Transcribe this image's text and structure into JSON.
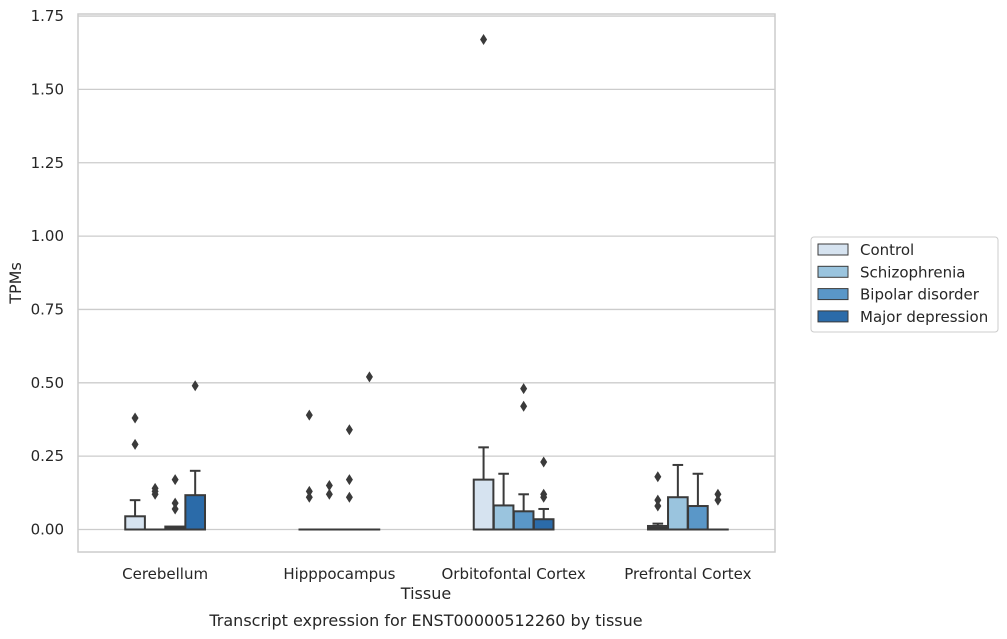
{
  "chart_data": {
    "type": "box",
    "title": "",
    "xlabel": "Tissue",
    "ylabel": "TPMs",
    "caption": "Transcript expression for ENST00000512260 by tissue",
    "categories": [
      "Cerebellum",
      "Hipppocampus",
      "Orbitofontal Cortex",
      "Prefrontal Cortex"
    ],
    "ylim": [
      -0.08,
      1.76
    ],
    "yticks": [
      0.0,
      0.25,
      0.5,
      0.75,
      1.0,
      1.25,
      1.5,
      1.75
    ],
    "ytick_labels": [
      "0.00",
      "0.25",
      "0.50",
      "0.75",
      "1.00",
      "1.25",
      "1.50",
      "1.75"
    ],
    "grid": "horizontal",
    "legend_position": "right",
    "series": [
      {
        "name": "Control",
        "color": "#d6e3f0",
        "boxes": [
          {
            "q1": 0.0,
            "median": 0.0,
            "q3": 0.045,
            "whisker_low": 0.0,
            "whisker_high": 0.1,
            "outliers": [
              0.38,
              0.29
            ]
          },
          {
            "q1": 0.0,
            "median": 0.0,
            "q3": 0.0,
            "whisker_low": 0.0,
            "whisker_high": 0.0,
            "outliers": [
              0.39,
              0.13,
              0.11
            ]
          },
          {
            "q1": 0.0,
            "median": 0.0,
            "q3": 0.17,
            "whisker_low": 0.0,
            "whisker_high": 0.28,
            "outliers": [
              1.67
            ]
          },
          {
            "q1": 0.0,
            "median": 0.005,
            "q3": 0.012,
            "whisker_low": 0.0,
            "whisker_high": 0.02,
            "outliers": [
              0.18,
              0.1,
              0.08
            ]
          }
        ]
      },
      {
        "name": "Schizophrenia",
        "color": "#9ac4de",
        "boxes": [
          {
            "q1": 0.0,
            "median": 0.0,
            "q3": 0.0,
            "whisker_low": 0.0,
            "whisker_high": 0.0,
            "outliers": [
              0.14,
              0.13,
              0.12
            ]
          },
          {
            "q1": 0.0,
            "median": 0.0,
            "q3": 0.0,
            "whisker_low": 0.0,
            "whisker_high": 0.0,
            "outliers": [
              0.15,
              0.12
            ]
          },
          {
            "q1": 0.0,
            "median": 0.0,
            "q3": 0.082,
            "whisker_low": 0.0,
            "whisker_high": 0.19,
            "outliers": []
          },
          {
            "q1": 0.0,
            "median": 0.0,
            "q3": 0.11,
            "whisker_low": 0.0,
            "whisker_high": 0.22,
            "outliers": []
          }
        ]
      },
      {
        "name": "Bipolar disorder",
        "color": "#5a97c8",
        "boxes": [
          {
            "q1": 0.0,
            "median": 0.005,
            "q3": 0.01,
            "whisker_low": 0.0,
            "whisker_high": 0.01,
            "outliers": [
              0.17,
              0.09,
              0.07
            ]
          },
          {
            "q1": 0.0,
            "median": 0.0,
            "q3": 0.0,
            "whisker_low": 0.0,
            "whisker_high": 0.0,
            "outliers": [
              0.34,
              0.17,
              0.11
            ]
          },
          {
            "q1": 0.0,
            "median": 0.0,
            "q3": 0.062,
            "whisker_low": 0.0,
            "whisker_high": 0.12,
            "outliers": [
              0.48,
              0.42
            ]
          },
          {
            "q1": 0.0,
            "median": 0.0,
            "q3": 0.08,
            "whisker_low": 0.0,
            "whisker_high": 0.19,
            "outliers": []
          }
        ]
      },
      {
        "name": "Major depression",
        "color": "#2b6ba9",
        "boxes": [
          {
            "q1": 0.0,
            "median": 0.0,
            "q3": 0.117,
            "whisker_low": 0.0,
            "whisker_high": 0.2,
            "outliers": [
              0.49
            ]
          },
          {
            "q1": 0.0,
            "median": 0.0,
            "q3": 0.0,
            "whisker_low": 0.0,
            "whisker_high": 0.0,
            "outliers": [
              0.52
            ]
          },
          {
            "q1": 0.0,
            "median": 0.0,
            "q3": 0.035,
            "whisker_low": 0.0,
            "whisker_high": 0.07,
            "outliers": [
              0.23,
              0.12,
              0.11
            ]
          },
          {
            "q1": 0.0,
            "median": 0.0,
            "q3": 0.0,
            "whisker_low": 0.0,
            "whisker_high": 0.0,
            "outliers": [
              0.12,
              0.1
            ]
          }
        ]
      }
    ]
  }
}
